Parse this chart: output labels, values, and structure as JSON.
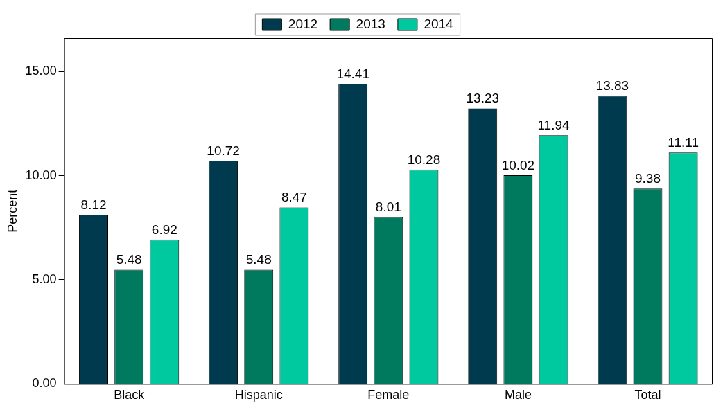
{
  "chart_data": {
    "type": "bar",
    "ylabel": "Percent",
    "categories": [
      "Black",
      "Hispanic",
      "Female",
      "Male",
      "Total"
    ],
    "series": [
      {
        "name": "2012",
        "color": "#003a4f",
        "values": [
          8.12,
          10.72,
          14.41,
          13.23,
          13.83
        ]
      },
      {
        "name": "2013",
        "color": "#007a5e",
        "values": [
          5.48,
          5.48,
          8.01,
          10.02,
          9.38
        ]
      },
      {
        "name": "2014",
        "color": "#00c9a0",
        "values": [
          6.92,
          8.47,
          10.28,
          11.94,
          11.11
        ]
      }
    ],
    "ylim": [
      0,
      16.6
    ],
    "yticks": [
      {
        "value": 0,
        "label": "0.00"
      },
      {
        "value": 5,
        "label": "5.00"
      },
      {
        "value": 10,
        "label": "10.00"
      },
      {
        "value": 15,
        "label": "15.00"
      }
    ],
    "data_labels": true,
    "legend": "top",
    "grid": false
  }
}
